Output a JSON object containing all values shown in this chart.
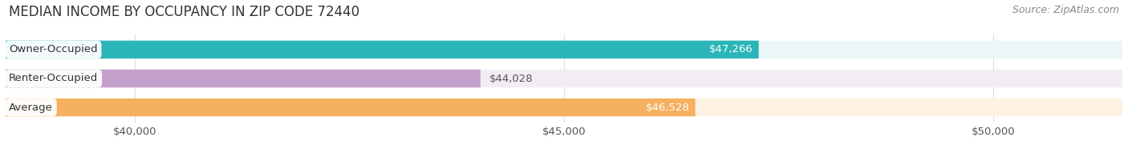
{
  "title": "MEDIAN INCOME BY OCCUPANCY IN ZIP CODE 72440",
  "source": "Source: ZipAtlas.com",
  "categories": [
    "Owner-Occupied",
    "Renter-Occupied",
    "Average"
  ],
  "values": [
    47266,
    44028,
    46528
  ],
  "bar_colors": [
    "#2bb5b8",
    "#c4a0cc",
    "#f5b060"
  ],
  "bar_bg_colors": [
    "#eaf6f7",
    "#f2edf5",
    "#fdf2e3"
  ],
  "value_labels": [
    "$47,266",
    "$44,028",
    "$46,528"
  ],
  "value_inside": [
    true,
    false,
    true
  ],
  "value_colors_inside": [
    "#ffffff",
    "#555555",
    "#ffffff"
  ],
  "xmin": 38500,
  "xmax": 51500,
  "xticks": [
    40000,
    45000,
    50000
  ],
  "xtick_labels": [
    "$40,000",
    "$45,000",
    "$50,000"
  ],
  "title_fontsize": 12,
  "source_fontsize": 9,
  "label_fontsize": 9.5,
  "value_fontsize": 9.5,
  "background_color": "#ffffff",
  "bar_height": 0.62,
  "title_color": "#333333",
  "source_color": "#888888",
  "label_color": "#333333",
  "grid_color": "#dddddd"
}
